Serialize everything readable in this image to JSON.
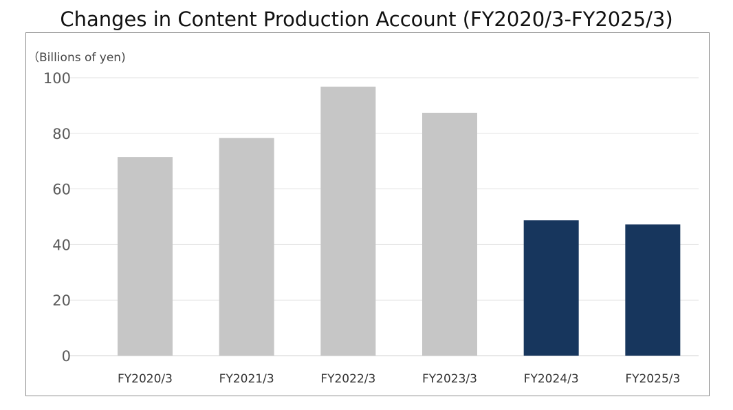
{
  "chart_data": {
    "type": "bar",
    "title": "Changes in Content Production Account (FY2020/3-FY2025/3)",
    "unit_label": "（Billions of yen)",
    "categories": [
      "FY2020/3",
      "FY2021/3",
      "FY2022/3",
      "FY2023/3",
      "FY2024/3",
      "FY2025/3"
    ],
    "values": [
      71.5,
      78.3,
      96.8,
      87.4,
      48.7,
      47.2
    ],
    "bar_colors": [
      "#c6c6c6",
      "#c6c6c6",
      "#c6c6c6",
      "#c6c6c6",
      "#17365d",
      "#17365d"
    ],
    "ylim": [
      0,
      100
    ],
    "yticks": [
      0,
      20,
      40,
      60,
      80,
      100
    ],
    "ytick_labels": [
      "0",
      "20",
      "40",
      "60",
      "80",
      "100"
    ],
    "grid": true,
    "xlabel": "",
    "ylabel": ""
  }
}
